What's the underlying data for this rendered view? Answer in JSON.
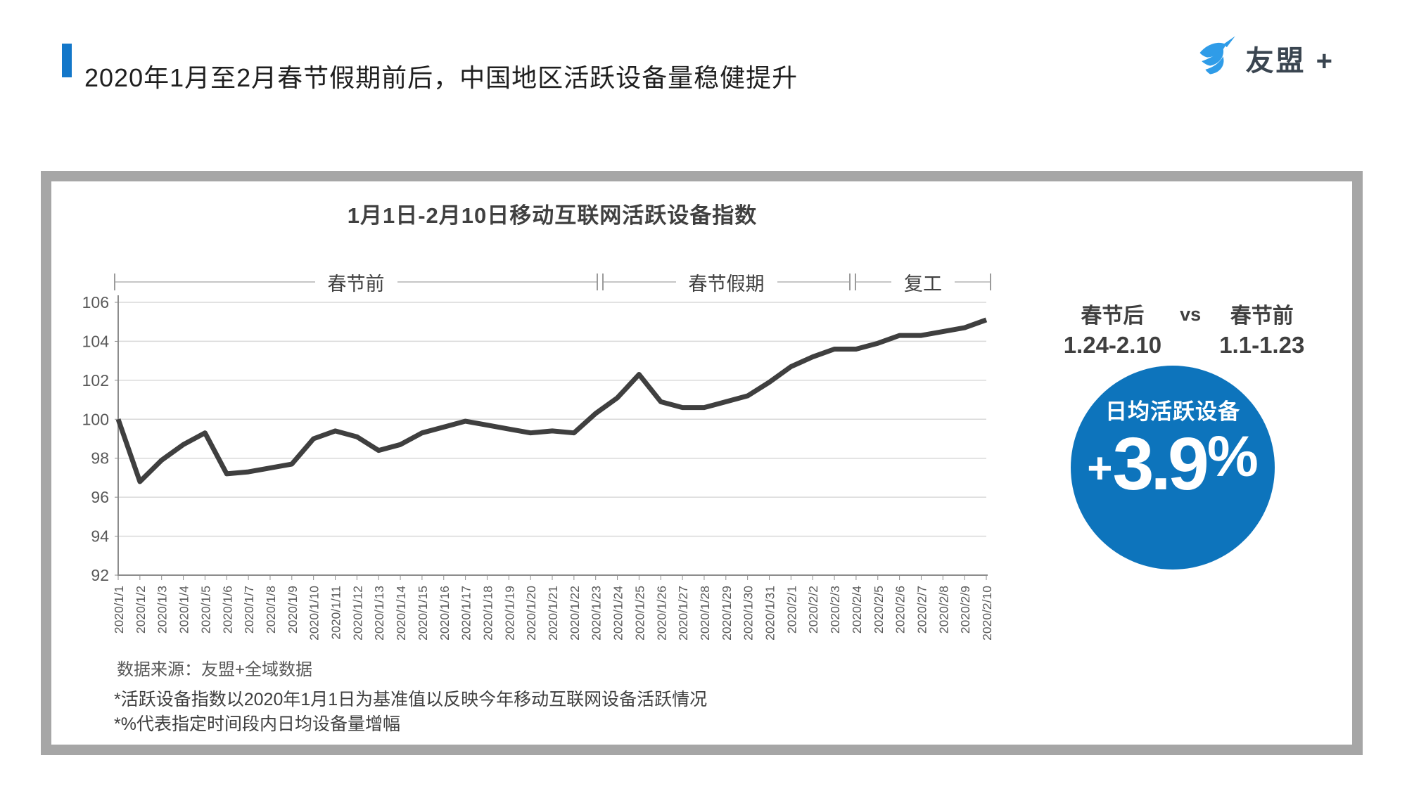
{
  "header": {
    "title": "2020年1月至2月春节假期前后，中国地区活跃设备量稳健提升",
    "logo_text": "友盟 +",
    "accent_color": "#1377c9",
    "logo_blue": "#2f9ce8"
  },
  "chart_data": {
    "type": "line",
    "title": "1月1日-2月10日移动互联网活跃设备指数",
    "x": [
      "2020/1/1",
      "2020/1/2",
      "2020/1/3",
      "2020/1/4",
      "2020/1/5",
      "2020/1/6",
      "2020/1/7",
      "2020/1/8",
      "2020/1/9",
      "2020/1/10",
      "2020/1/11",
      "2020/1/12",
      "2020/1/13",
      "2020/1/14",
      "2020/1/15",
      "2020/1/16",
      "2020/1/17",
      "2020/1/18",
      "2020/1/19",
      "2020/1/20",
      "2020/1/21",
      "2020/1/22",
      "2020/1/23",
      "2020/1/24",
      "2020/1/25",
      "2020/1/26",
      "2020/1/27",
      "2020/1/28",
      "2020/1/29",
      "2020/1/30",
      "2020/1/31",
      "2020/2/1",
      "2020/2/2",
      "2020/2/3",
      "2020/2/4",
      "2020/2/5",
      "2020/2/6",
      "2020/2/7",
      "2020/2/8",
      "2020/2/9",
      "2020/2/10"
    ],
    "values": [
      100.0,
      96.8,
      97.9,
      98.7,
      99.3,
      97.2,
      97.3,
      97.5,
      97.7,
      99.0,
      99.4,
      99.1,
      98.4,
      98.7,
      99.3,
      99.6,
      99.9,
      99.7,
      99.5,
      99.3,
      99.4,
      99.3,
      100.3,
      101.1,
      102.3,
      100.9,
      100.6,
      100.6,
      100.9,
      101.2,
      101.9,
      102.7,
      103.2,
      103.6,
      103.6,
      103.9,
      104.3,
      104.3,
      104.5,
      104.7,
      105.1
    ],
    "ylim": [
      92,
      106
    ],
    "ytick_step": 2,
    "grid": true,
    "legend": "none",
    "line_color": "#3f3f3f",
    "grid_color": "#d9d9d9",
    "axis_color": "#8c8c8c",
    "tick_color": "#595959",
    "periods": [
      {
        "label": "春节前",
        "start": "2020/1/1",
        "end": "2020/1/23"
      },
      {
        "label": "春节假期",
        "start": "2020/1/24",
        "end": "2020/2/3"
      },
      {
        "label": "复工",
        "start": "2020/2/4",
        "end": "2020/2/10"
      }
    ],
    "source": "数据来源：友盟+全域数据"
  },
  "comparison": {
    "left_label": "春节后",
    "left_range": "1.24-2.10",
    "vs": "vs",
    "right_label": "春节前",
    "right_range": "1.1-1.23"
  },
  "badge": {
    "label": "日均活跃设备",
    "plus": "+",
    "number": "3.9",
    "percent": "%",
    "color": "#0d74bc"
  },
  "footnotes": [
    "*活跃设备指数以2020年1月1日为基准值以反映今年移动互联网设备活跃情况",
    "*%代表指定时间段内日均设备量增幅"
  ]
}
